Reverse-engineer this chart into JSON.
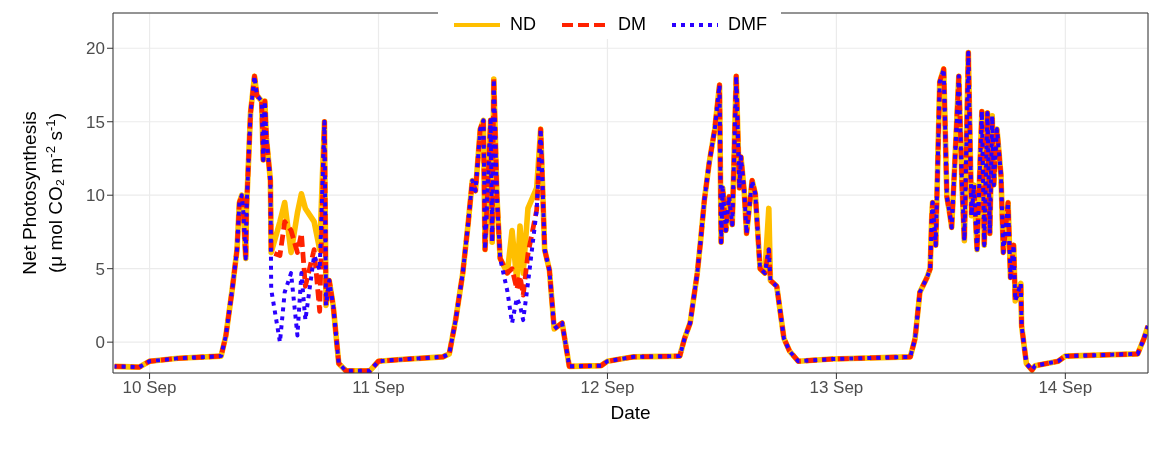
{
  "chart_data": {
    "type": "line",
    "xlabel": "Date",
    "ylabel": "Net Photosynthesis\n(μ mol CO₂ m$^{-2}$ s$^{-1}$)",
    "x": [
      "--09-09T20:20",
      "--09-09T22:55",
      "--09-10T00:00",
      "--09-10T03:00",
      "--09-10T07:30",
      "--09-10T08:00",
      "--09-10T08:40",
      "--09-10T09:10",
      "--09-10T09:25",
      "--09-10T09:40",
      "--09-10T09:50",
      "--09-10T10:05",
      "--09-10T10:10",
      "--09-10T10:35",
      "--09-10T11:00",
      "--09-10T11:15",
      "--09-10T11:45",
      "--09-10T11:55",
      "--09-10T12:05",
      "--09-10T12:15",
      "--09-10T12:40",
      "--09-10T12:45",
      "--09-10T13:40",
      "--09-10T14:10",
      "--09-10T14:50",
      "--09-10T15:30",
      "--09-10T15:55",
      "--09-10T16:20",
      "--09-10T17:15",
      "--09-10T17:50",
      "--09-10T18:20",
      "--09-10T18:30",
      "--09-10T18:50",
      "--09-10T19:15",
      "--09-10T19:50",
      "--09-10T20:35",
      "--09-10T23:05",
      "--09-11T00:00",
      "--09-11T01:55",
      "--09-11T06:45",
      "--09-11T07:25",
      "--09-11T08:05",
      "--09-11T08:50",
      "--09-11T09:25",
      "--09-11T09:50",
      "--09-11T10:10",
      "--09-11T10:40",
      "--09-11T11:00",
      "--09-11T11:10",
      "--09-11T11:45",
      "--09-11T11:55",
      "--09-11T12:05",
      "--09-11T12:25",
      "--09-11T12:45",
      "--09-11T13:30",
      "--09-11T14:00",
      "--09-11T14:30",
      "--09-11T14:50",
      "--09-11T15:10",
      "--09-11T15:40",
      "--09-11T16:35",
      "--09-11T17:00",
      "--09-11T17:25",
      "--09-11T17:55",
      "--09-11T18:25",
      "--09-11T19:15",
      "--09-11T20:00",
      "--09-11T23:20",
      "--09-12T00:00",
      "--09-12T02:45",
      "--09-12T07:35",
      "--09-12T08:05",
      "--09-12T08:40",
      "--09-12T09:25",
      "--09-12T09:45",
      "--09-12T10:10",
      "--09-12T10:40",
      "--09-12T11:15",
      "--09-12T11:45",
      "--09-12T11:55",
      "--09-12T12:05",
      "--09-12T12:25",
      "--09-12T12:45",
      "--09-12T13:05",
      "--09-12T13:30",
      "--09-12T13:50",
      "--09-12T14:00",
      "--09-12T14:20",
      "--09-12T14:35",
      "--09-12T15:10",
      "--09-12T15:30",
      "--09-12T16:00",
      "--09-12T16:30",
      "--09-12T16:55",
      "--09-12T17:05",
      "--09-12T17:45",
      "--09-12T18:30",
      "--09-12T19:05",
      "--09-12T20:00",
      "--09-12T23:30",
      "--09-13T07:45",
      "--09-13T08:15",
      "--09-13T08:45",
      "--09-13T09:30",
      "--09-13T09:50",
      "--09-13T10:00",
      "--09-13T10:05",
      "--09-13T10:25",
      "--09-13T10:50",
      "--09-13T11:15",
      "--09-13T11:35",
      "--09-13T11:55",
      "--09-13T12:05",
      "--09-13T12:25",
      "--09-13T12:50",
      "--09-13T13:10",
      "--09-13T13:25",
      "--09-13T13:50",
      "--09-13T14:10",
      "--09-13T14:25",
      "--09-13T14:45",
      "--09-13T15:15",
      "--09-13T15:30",
      "--09-13T15:50",
      "--09-13T16:05",
      "--09-13T16:20",
      "--09-13T16:30",
      "--09-13T16:50",
      "--09-13T17:15",
      "--09-13T17:30",
      "--09-13T18:00",
      "--09-13T18:15",
      "--09-13T18:35",
      "--09-13T18:45",
      "--09-13T19:20",
      "--09-13T19:25",
      "--09-13T19:55",
      "--09-13T20:30",
      "--09-13T20:50",
      "--09-13T23:15",
      "--09-14T00:00",
      "--09-14T07:35",
      "--09-14T08:15",
      "--09-14T08:40"
    ],
    "series": [
      {
        "name": "ND",
        "color": "#ffbf00",
        "line_style": "solid",
        "values": [
          -1.65,
          -1.7,
          -1.3,
          -1.1,
          -0.95,
          0.45,
          3.6,
          6.3,
          9.5,
          10.0,
          8.8,
          5.7,
          9.1,
          15.6,
          18.1,
          16.8,
          16.4,
          12.4,
          16.4,
          13.9,
          11,
          6.1,
          8.2,
          9.5,
          6.1,
          8.8,
          10.1,
          9.1,
          8.2,
          6.3,
          15,
          2.5,
          4.2,
          2.5,
          -1.45,
          -1.95,
          -1.95,
          -1.3,
          -1.2,
          -1.0,
          -0.8,
          1.5,
          4.7,
          8.2,
          11.0,
          10.3,
          14.5,
          15.1,
          6.3,
          15.1,
          6.8,
          17.9,
          9.9,
          5.7,
          4.7,
          7.6,
          4.2,
          7.9,
          4.7,
          9.1,
          10.5,
          14.5,
          6.3,
          4.9,
          0.9,
          1.3,
          -1.65,
          -1.6,
          -1.3,
          -1.0,
          -0.95,
          0.25,
          1.3,
          4.7,
          6.8,
          9.7,
          12.2,
          14.5,
          17.5,
          6.8,
          10.5,
          7.6,
          9.9,
          8.0,
          18.1,
          10.5,
          12.6,
          10.3,
          7.4,
          11.0,
          10.1,
          5.0,
          4.7,
          9.1,
          4.2,
          3.8,
          0.25,
          -0.6,
          -1.3,
          -1.15,
          -1.0,
          0.25,
          3.4,
          4.4,
          5.0,
          8.6,
          9.5,
          6.6,
          17.7,
          18.6,
          9.9,
          8.6,
          7.8,
          12.2,
          18.1,
          10.7,
          6.9,
          19.7,
          8.6,
          10.7,
          6.3,
          15.7,
          6.6,
          15.6,
          7.4,
          15.4,
          10.7,
          14.5,
          11.4,
          6.1,
          9.5,
          4.4,
          6.6,
          2.8,
          4.0,
          1.1,
          -1.45,
          -1.9,
          -1.6,
          -1.3,
          -0.95,
          -0.8,
          0.25,
          1.1
        ]
      },
      {
        "name": "DM",
        "color": "#ff2200",
        "line_style": "dashed",
        "values": [
          -1.65,
          -1.7,
          -1.3,
          -1.1,
          -0.95,
          0.45,
          3.6,
          6.3,
          9.5,
          10.0,
          8.8,
          5.7,
          9.1,
          15.6,
          18.1,
          16.8,
          16.4,
          12.4,
          16.4,
          13.9,
          11,
          6.1,
          5.9,
          8.2,
          7.6,
          6.1,
          7.4,
          3.8,
          6.3,
          2.1,
          15,
          2.5,
          4.2,
          2.5,
          -1.45,
          -1.95,
          -1.95,
          -1.3,
          -1.2,
          -1.0,
          -0.8,
          1.5,
          4.7,
          8.2,
          11.0,
          10.3,
          14.5,
          15.1,
          6.3,
          15.1,
          6.8,
          17.9,
          9.9,
          5.7,
          4.7,
          5.0,
          3.6,
          4.5,
          3.2,
          6.0,
          9.0,
          14.5,
          6.3,
          4.9,
          0.9,
          1.3,
          -1.65,
          -1.6,
          -1.3,
          -1.0,
          -0.95,
          0.25,
          1.3,
          4.7,
          6.8,
          9.7,
          12.2,
          14.5,
          17.5,
          6.8,
          10.5,
          7.6,
          9.9,
          8.0,
          18.1,
          10.5,
          12.6,
          10.3,
          7.4,
          11.0,
          10.1,
          5.0,
          4.7,
          6.3,
          4.2,
          3.8,
          0.25,
          -0.6,
          -1.3,
          -1.15,
          -1.0,
          0.25,
          3.4,
          4.4,
          5.0,
          8.6,
          9.5,
          6.6,
          17.7,
          18.6,
          9.9,
          8.6,
          7.8,
          12.2,
          18.1,
          10.7,
          6.9,
          19.7,
          8.6,
          10.7,
          6.3,
          15.7,
          6.6,
          15.6,
          7.4,
          15.4,
          10.7,
          14.5,
          11.4,
          6.1,
          9.5,
          4.4,
          6.6,
          2.8,
          4.0,
          1.1,
          -1.45,
          -1.9,
          -1.6,
          -1.3,
          -0.95,
          -0.8,
          0.25,
          1.1
        ]
      },
      {
        "name": "DMF",
        "color": "#2a00ff",
        "line_style": "dotted",
        "values": [
          -1.65,
          -1.7,
          -1.3,
          -1.1,
          -0.95,
          0.45,
          3.6,
          6.3,
          9.5,
          10.0,
          8.8,
          5.7,
          9.1,
          15.6,
          18.1,
          16.8,
          16.4,
          12.4,
          16.4,
          13.9,
          11,
          3.6,
          0,
          3.4,
          4.7,
          0.45,
          4.7,
          1.5,
          5.9,
          4.9,
          15,
          2.5,
          4.2,
          2.5,
          -1.45,
          -1.95,
          -1.95,
          -1.3,
          -1.2,
          -1.0,
          -0.8,
          1.5,
          4.7,
          8.2,
          11.0,
          10.3,
          14.5,
          15.1,
          6.3,
          15.1,
          6.8,
          17.9,
          9.9,
          5.7,
          3.5,
          1.3,
          3.0,
          2.5,
          1.5,
          4.0,
          9.0,
          14.5,
          6.3,
          4.9,
          0.9,
          1.3,
          -1.65,
          -1.6,
          -1.3,
          -1.0,
          -0.95,
          0.25,
          1.3,
          4.7,
          6.8,
          9.7,
          12.2,
          14.5,
          17.5,
          6.8,
          10.5,
          7.6,
          9.9,
          8.0,
          18.1,
          10.5,
          12.6,
          10.3,
          7.4,
          11.0,
          10.1,
          5.0,
          4.7,
          6.3,
          4.2,
          3.8,
          0.25,
          -0.6,
          -1.3,
          -1.15,
          -1.0,
          0.25,
          3.4,
          4.4,
          5.0,
          8.6,
          9.5,
          6.6,
          17.7,
          18.6,
          9.9,
          8.6,
          7.8,
          12.2,
          18.1,
          10.7,
          6.9,
          19.7,
          8.6,
          10.7,
          6.3,
          15.7,
          6.6,
          15.6,
          7.4,
          15.4,
          10.7,
          14.5,
          11.4,
          6.1,
          9.5,
          4.4,
          6.6,
          2.8,
          4.0,
          1.1,
          -1.45,
          -1.9,
          -1.6,
          -1.3,
          -0.95,
          -0.8,
          0.25,
          1.1
        ]
      }
    ],
    "xlim": [
      "--09-09T20:10",
      "--09-14T08:40"
    ],
    "xticks": [
      {
        "value": "--09-10",
        "label": "10 Sep"
      },
      {
        "value": "--09-11",
        "label": "11 Sep"
      },
      {
        "value": "--09-12",
        "label": "12 Sep"
      },
      {
        "value": "--09-13",
        "label": "13 Sep"
      },
      {
        "value": "--09-14",
        "label": "14 Sep"
      }
    ],
    "ylim": [
      -2.1,
      22.4
    ],
    "yticks": [
      0,
      5,
      10,
      15,
      20
    ],
    "grid": true,
    "legend": "top"
  }
}
